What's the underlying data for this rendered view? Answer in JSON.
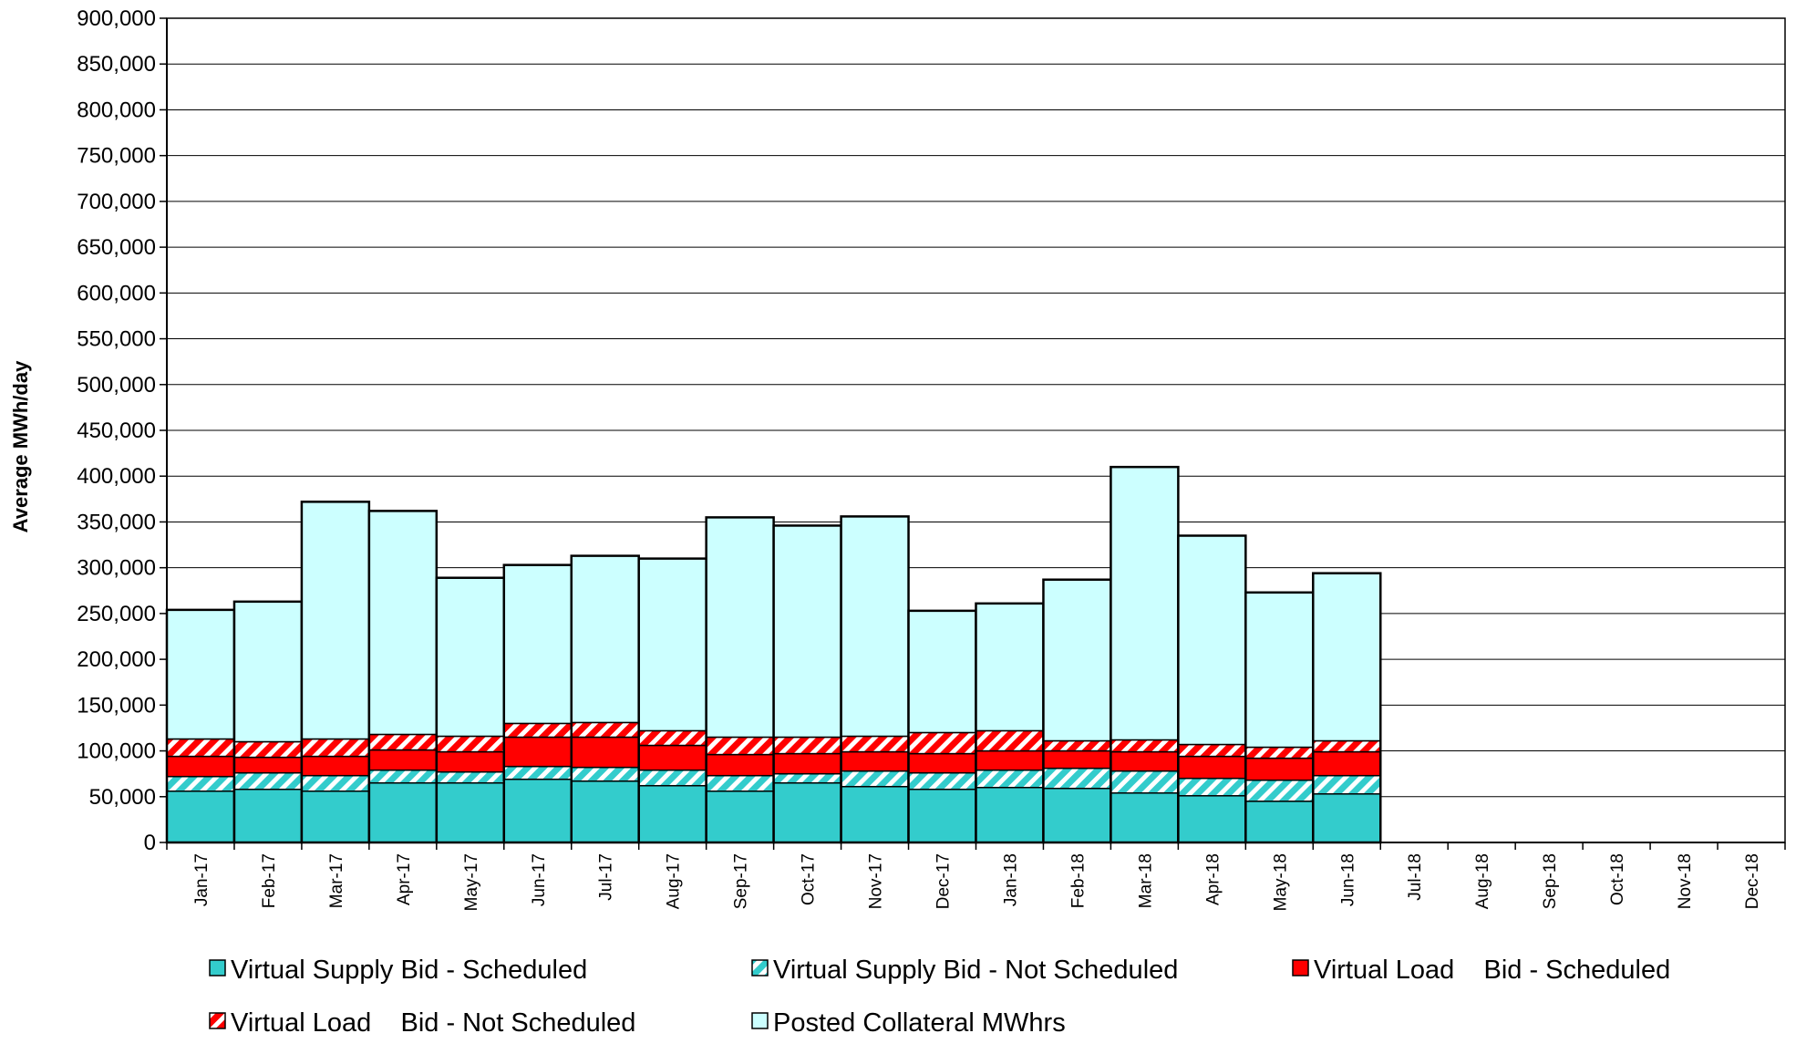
{
  "chart_data": {
    "type": "bar",
    "stacked": true,
    "title": "",
    "xlabel": "",
    "ylabel": "Average MWh/day",
    "ylim": [
      0,
      900000
    ],
    "ytick_step": 50000,
    "ytick_labels": [
      "0",
      "50,000",
      "100,000",
      "150,000",
      "200,000",
      "250,000",
      "300,000",
      "350,000",
      "400,000",
      "450,000",
      "500,000",
      "550,000",
      "600,000",
      "650,000",
      "700,000",
      "750,000",
      "800,000",
      "850,000",
      "900,000"
    ],
    "grid": true,
    "legend_position": "bottom",
    "categories": [
      "Jan-17",
      "Feb-17",
      "Mar-17",
      "Apr-17",
      "May-17",
      "Jun-17",
      "Jul-17",
      "Aug-17",
      "Sep-17",
      "Oct-17",
      "Nov-17",
      "Dec-17",
      "Jan-18",
      "Feb-18",
      "Mar-18",
      "Apr-18",
      "May-18",
      "Jun-18",
      "Jul-18",
      "Aug-18",
      "Sep-18",
      "Oct-18",
      "Nov-18",
      "Dec-18"
    ],
    "series": [
      {
        "name": "Virtual Supply Bid - Scheduled",
        "color": "#33CCCC",
        "pattern": "solid",
        "values": [
          56000,
          58000,
          56000,
          65000,
          65000,
          69000,
          67000,
          62000,
          56000,
          65000,
          61000,
          58000,
          60000,
          59000,
          54000,
          51000,
          45000,
          53000,
          null,
          null,
          null,
          null,
          null,
          null
        ]
      },
      {
        "name": "Virtual Supply Bid - Not Scheduled",
        "color": "#33CCCC",
        "pattern": "hatch",
        "values": [
          16000,
          18000,
          17000,
          14000,
          12000,
          14000,
          15000,
          17000,
          17000,
          10000,
          17000,
          18000,
          19000,
          22000,
          24000,
          19000,
          23000,
          20000,
          null,
          null,
          null,
          null,
          null,
          null
        ]
      },
      {
        "name": "Virtual Load    Bid - Scheduled",
        "color": "#FF0000",
        "pattern": "solid",
        "values": [
          22000,
          17000,
          21000,
          22000,
          22000,
          32000,
          33000,
          27000,
          23000,
          22000,
          21000,
          21000,
          21000,
          19000,
          21000,
          24000,
          24000,
          26000,
          null,
          null,
          null,
          null,
          null,
          null
        ]
      },
      {
        "name": "Virtual Load    Bid - Not Scheduled",
        "color": "#FF0000",
        "pattern": "hatch",
        "values": [
          19000,
          17000,
          19000,
          17000,
          17000,
          15000,
          16000,
          16000,
          19000,
          18000,
          17000,
          23000,
          22000,
          11000,
          13000,
          13000,
          12000,
          12000,
          null,
          null,
          null,
          null,
          null,
          null
        ]
      },
      {
        "name": "Posted Collateral MWhrs",
        "color": "#CCFFFF",
        "pattern": "solid",
        "values": [
          141000,
          153000,
          259000,
          244000,
          173000,
          173000,
          182000,
          188000,
          240000,
          231000,
          240000,
          133000,
          139000,
          176000,
          298000,
          228000,
          169000,
          183000,
          null,
          null,
          null,
          null,
          null,
          null
        ]
      }
    ]
  }
}
